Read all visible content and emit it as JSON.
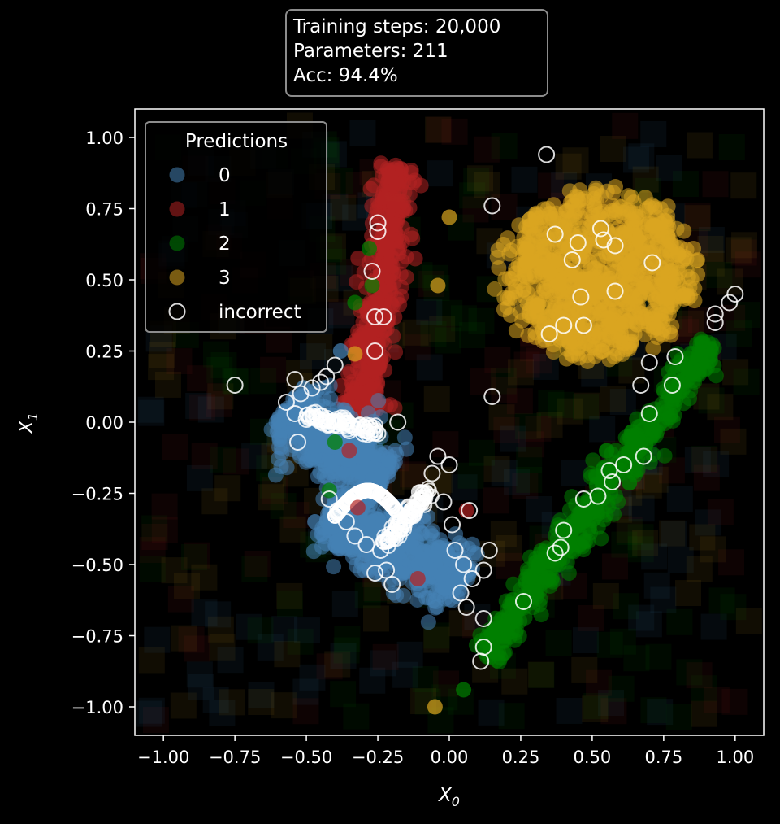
{
  "info": {
    "line1": "Training steps: 20,000",
    "line2": "Parameters: 211",
    "line3": "Acc: 94.4%"
  },
  "chart_data": {
    "type": "scatter",
    "title": "",
    "xlabel": "X_0",
    "ylabel": "X_1",
    "xlim": [
      -1.1,
      1.1
    ],
    "ylim": [
      -1.1,
      1.1
    ],
    "xticks": [
      "−1.00",
      "−0.75",
      "−0.50",
      "−0.25",
      "0.00",
      "0.25",
      "0.50",
      "0.75",
      "1.00"
    ],
    "yticks": [
      "1.00",
      "0.75",
      "0.50",
      "0.25",
      "0.00",
      "−0.25",
      "−0.50",
      "−0.75",
      "−1.00"
    ],
    "tick_values": [
      -1.0,
      -0.75,
      -0.5,
      -0.25,
      0.0,
      0.25,
      0.5,
      0.75,
      1.0
    ],
    "grid": false,
    "background": "#000000",
    "legend": {
      "title": "Predictions",
      "placement": "top-left",
      "entries": [
        {
          "label": "0",
          "color": "#4682b4"
        },
        {
          "label": "1",
          "color": "#b22222"
        },
        {
          "label": "2",
          "color": "#008000"
        },
        {
          "label": "3",
          "color": "#daa520"
        },
        {
          "label": "incorrect",
          "color": "#ffffff",
          "hollow": true
        }
      ]
    },
    "clusters": [
      {
        "class": "0",
        "color": "#4682b4",
        "shape": "two connected arms: from (-0.58, 0.05) to (-0.25, -0.20) and from (-0.40, -0.35) to (0.05, -0.55)"
      },
      {
        "class": "1",
        "color": "#b22222",
        "shape": "elongated band from (-0.30, 0.05) to (-0.18, 0.92)"
      },
      {
        "class": "2",
        "color": "#008000",
        "shape": "diagonal band from (0.12, -0.82) to (0.92, 0.28)"
      },
      {
        "class": "3",
        "color": "#daa520",
        "shape": "round blob centered (0.52, 0.52), radius about 0.33"
      }
    ],
    "incorrect_points": [
      [
        0.34,
        0.94
      ],
      [
        0.4,
        0.34
      ],
      [
        0.37,
        0.66
      ],
      [
        0.45,
        0.63
      ],
      [
        0.53,
        0.68
      ],
      [
        0.54,
        0.64
      ],
      [
        0.58,
        0.62
      ],
      [
        0.71,
        0.56
      ],
      [
        0.35,
        0.31
      ],
      [
        0.46,
        0.44
      ],
      [
        0.58,
        0.46
      ],
      [
        0.43,
        0.57
      ],
      [
        0.47,
        0.34
      ],
      [
        0.15,
        0.76
      ],
      [
        0.15,
        0.09
      ],
      [
        0.67,
        0.13
      ],
      [
        0.78,
        0.13
      ],
      [
        0.79,
        0.23
      ],
      [
        0.7,
        0.21
      ],
      [
        0.93,
        0.38
      ],
      [
        0.93,
        0.35
      ],
      [
        0.98,
        0.42
      ],
      [
        1.0,
        0.45
      ],
      [
        0.7,
        0.03
      ],
      [
        0.68,
        -0.12
      ],
      [
        0.61,
        -0.15
      ],
      [
        0.56,
        -0.17
      ],
      [
        0.57,
        -0.21
      ],
      [
        0.52,
        -0.26
      ],
      [
        0.47,
        -0.27
      ],
      [
        0.4,
        -0.38
      ],
      [
        0.39,
        -0.44
      ],
      [
        0.37,
        -0.46
      ],
      [
        0.26,
        -0.63
      ],
      [
        0.12,
        -0.79
      ],
      [
        0.11,
        -0.84
      ],
      [
        -0.25,
        0.7
      ],
      [
        -0.25,
        0.67
      ],
      [
        -0.27,
        0.53
      ],
      [
        -0.26,
        0.37
      ],
      [
        -0.23,
        0.37
      ],
      [
        -0.26,
        0.25
      ],
      [
        -0.4,
        0.2
      ],
      [
        -0.75,
        0.13
      ],
      [
        -0.54,
        0.15
      ],
      [
        -0.52,
        0.1
      ],
      [
        -0.48,
        0.12
      ],
      [
        -0.45,
        0.14
      ],
      [
        -0.57,
        0.07
      ],
      [
        -0.54,
        0.03
      ],
      [
        -0.5,
        0.01
      ],
      [
        -0.45,
        0.02
      ],
      [
        -0.4,
        -0.01
      ],
      [
        -0.35,
        -0.03
      ],
      [
        -0.3,
        -0.04
      ],
      [
        -0.25,
        -0.04
      ],
      [
        -0.18,
        0.0
      ],
      [
        -0.42,
        -0.27
      ],
      [
        -0.39,
        -0.31
      ],
      [
        -0.36,
        -0.35
      ],
      [
        -0.33,
        -0.4
      ],
      [
        -0.29,
        -0.43
      ],
      [
        -0.24,
        -0.45
      ],
      [
        -0.22,
        -0.52
      ],
      [
        -0.2,
        -0.57
      ],
      [
        -0.26,
        -0.53
      ],
      [
        -0.09,
        -0.25
      ],
      [
        -0.06,
        -0.18
      ],
      [
        -0.04,
        -0.12
      ],
      [
        0.0,
        -0.15
      ],
      [
        -0.02,
        -0.28
      ],
      [
        0.01,
        -0.36
      ],
      [
        0.02,
        -0.45
      ],
      [
        0.05,
        -0.5
      ],
      [
        0.08,
        -0.55
      ],
      [
        0.12,
        -0.52
      ],
      [
        0.04,
        -0.6
      ],
      [
        0.07,
        -0.31
      ],
      [
        0.14,
        -0.45
      ],
      [
        0.06,
        -0.65
      ],
      [
        0.12,
        -0.69
      ],
      [
        -0.53,
        -0.07
      ],
      [
        -0.43,
        0.16
      ]
    ],
    "misc_points": [
      {
        "x": -0.04,
        "y": 0.48,
        "color": "#daa520"
      },
      {
        "x": 0.0,
        "y": 0.72,
        "color": "#daa520"
      },
      {
        "x": -0.33,
        "y": 0.24,
        "color": "#daa520"
      },
      {
        "x": -0.05,
        "y": -1.0,
        "color": "#daa520"
      },
      {
        "x": -0.33,
        "y": 0.42,
        "color": "#008000"
      },
      {
        "x": -0.28,
        "y": 0.61,
        "color": "#008000"
      },
      {
        "x": -0.27,
        "y": 0.48,
        "color": "#008000"
      },
      {
        "x": -0.42,
        "y": -0.24,
        "color": "#008000"
      },
      {
        "x": -0.4,
        "y": -0.07,
        "color": "#008000"
      },
      {
        "x": 0.05,
        "y": -0.94,
        "color": "#008000"
      },
      {
        "x": -0.32,
        "y": -0.3,
        "color": "#b22222"
      },
      {
        "x": -0.11,
        "y": -0.55,
        "color": "#b22222"
      },
      {
        "x": 0.06,
        "y": -0.31,
        "color": "#b22222"
      },
      {
        "x": -0.35,
        "y": -0.1,
        "color": "#b22222"
      },
      {
        "x": -0.47,
        "y": -0.35,
        "color": "#4682b4"
      },
      {
        "x": -0.38,
        "y": 0.25,
        "color": "#4682b4"
      }
    ]
  }
}
